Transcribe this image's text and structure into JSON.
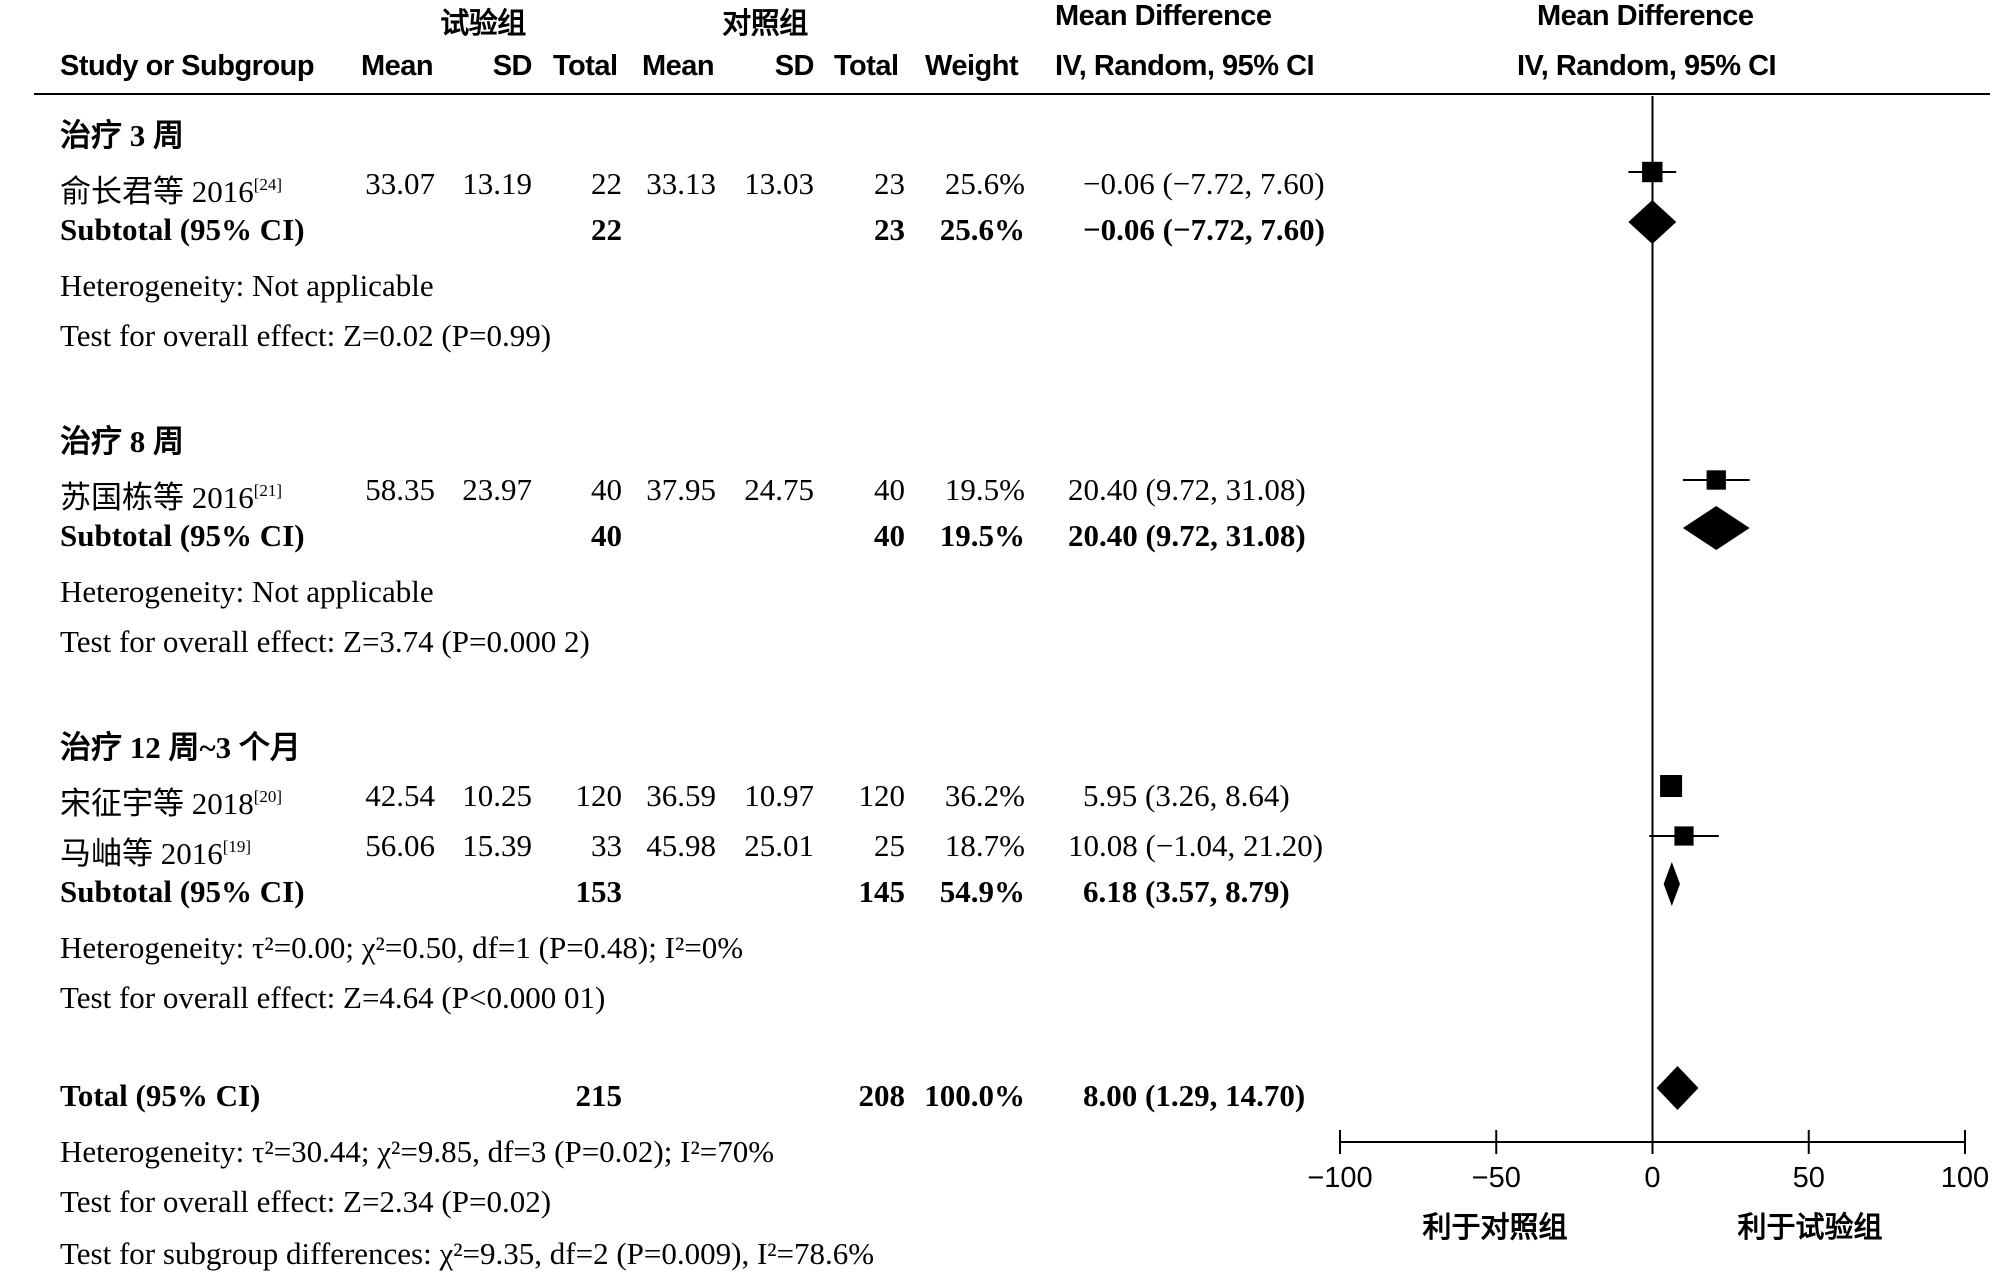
{
  "header": {
    "group1": "试验组",
    "group2": "对照组",
    "md_title": "Mean Difference",
    "md_title_plot": "Mean Difference",
    "study_col": "Study or Subgroup",
    "mean": "Mean",
    "sd": "SD",
    "total": "Total",
    "weight": "Weight",
    "method": "IV, Random, 95% CI",
    "method_plot": "IV, Random, 95% CI"
  },
  "subgroups": [
    {
      "title": "治疗 3 周",
      "studies": [
        {
          "name": "俞长君等 2016",
          "ref": "[24]",
          "m1": "33.07",
          "sd1": "13.19",
          "n1": "22",
          "m2": "33.13",
          "sd2": "13.03",
          "n2": "23",
          "weight": "25.6%",
          "ci": "−0.06 (−7.72, 7.60)"
        }
      ],
      "subtotal": {
        "label": "Subtotal (95% CI)",
        "n1": "22",
        "n2": "23",
        "weight": "25.6%",
        "ci": "−0.06 (−7.72, 7.60)"
      },
      "heterogeneity": "Heterogeneity: Not applicable",
      "overall": "Test for overall effect: Z=0.02 (P=0.99)"
    },
    {
      "title": "治疗 8 周",
      "studies": [
        {
          "name": "苏国栋等 2016",
          "ref": "[21]",
          "m1": "58.35",
          "sd1": "23.97",
          "n1": "40",
          "m2": "37.95",
          "sd2": "24.75",
          "n2": "40",
          "weight": "19.5%",
          "ci": "20.40 (9.72, 31.08)"
        }
      ],
      "subtotal": {
        "label": "Subtotal (95% CI)",
        "n1": "40",
        "n2": "40",
        "weight": "19.5%",
        "ci": "20.40 (9.72, 31.08)"
      },
      "heterogeneity": "Heterogeneity: Not applicable",
      "overall": "Test for overall effect: Z=3.74 (P=0.000 2)"
    },
    {
      "title": "治疗 12 周~3 个月",
      "studies": [
        {
          "name": "宋征宇等 2018",
          "ref": "[20]",
          "m1": "42.54",
          "sd1": "10.25",
          "n1": "120",
          "m2": "36.59",
          "sd2": "10.97",
          "n2": "120",
          "weight": "36.2%",
          "ci": "5.95 (3.26, 8.64)"
        },
        {
          "name": "马岫等 2016",
          "ref": "[19]",
          "m1": "56.06",
          "sd1": "15.39",
          "n1": "33",
          "m2": "45.98",
          "sd2": "25.01",
          "n2": "25",
          "weight": "18.7%",
          "ci": "10.08 (−1.04, 21.20)"
        }
      ],
      "subtotal": {
        "label": "Subtotal (95% CI)",
        "n1": "153",
        "n2": "145",
        "weight": "54.9%",
        "ci": "6.18 (3.57, 8.79)"
      },
      "heterogeneity": "Heterogeneity: τ²=0.00; χ²=0.50, df=1 (P=0.48); I²=0%",
      "overall": "Test for overall effect: Z=4.64 (P<0.000 01)"
    }
  ],
  "total": {
    "label": "Total (95% CI)",
    "n1": "215",
    "n2": "208",
    "weight": "100.0%",
    "ci": "8.00 (1.29, 14.70)",
    "heterogeneity": "Heterogeneity: τ²=30.44; χ²=9.85, df=3 (P=0.02); I²=70%",
    "overall": "Test for overall effect: Z=2.34 (P=0.02)",
    "subgroup_diff": "Test for subgroup differences: χ²=9.35, df=2 (P=0.009), I²=78.6%"
  },
  "axis": {
    "favors_left": "利于对照组",
    "favors_right": "利于试验组"
  },
  "chart_data": {
    "type": "forest",
    "xlim": [
      -100,
      100
    ],
    "ticks": [
      -100,
      -50,
      0,
      50,
      100
    ],
    "tick_labels": [
      "−100",
      "−50",
      "0",
      "50",
      "100"
    ],
    "studies": [
      {
        "row": 0,
        "est": -0.06,
        "lo": -7.72,
        "hi": 7.6,
        "weight": 25.6
      },
      {
        "row": 1,
        "est": 20.4,
        "lo": 9.72,
        "hi": 31.08,
        "weight": 19.5
      },
      {
        "row": 2,
        "est": 5.95,
        "lo": 3.26,
        "hi": 8.64,
        "weight": 36.2
      },
      {
        "row": 3,
        "est": 10.08,
        "lo": -1.04,
        "hi": 21.2,
        "weight": 18.7
      }
    ],
    "diamonds": [
      {
        "row": 0,
        "est": -0.06,
        "lo": -7.72,
        "hi": 7.6
      },
      {
        "row": 1,
        "est": 20.4,
        "lo": 9.72,
        "hi": 31.08
      },
      {
        "row": 2,
        "est": 6.18,
        "lo": 3.57,
        "hi": 8.79
      },
      {
        "row": 3,
        "est": 8.0,
        "lo": 1.29,
        "hi": 14.7
      }
    ]
  }
}
